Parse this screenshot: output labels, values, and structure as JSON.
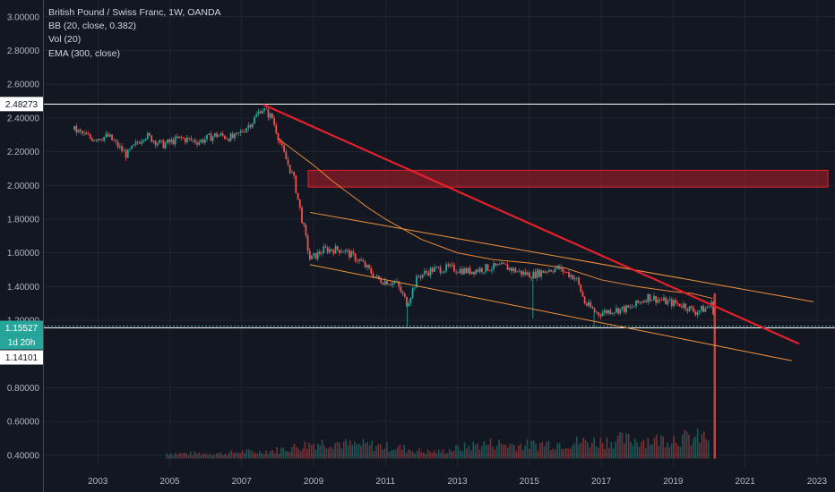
{
  "legend": {
    "title": "British Pound / Swiss Franc, 1W, OANDA",
    "indicators": [
      "BB (20, close, 0.382)",
      "Vol (20)",
      "EMA (300, close)"
    ]
  },
  "colors": {
    "background": "#131722",
    "grid": "#2a2e39",
    "axis_text": "#b2b5be",
    "price_up": "#26a69a",
    "price_down": "#ef5350",
    "red_trendline": "#e5202a",
    "orange_channel": "#f0923c",
    "ema": "#e8873a",
    "zone_fill": "rgba(210,30,40,0.45)",
    "zone_border": "#e5202a",
    "hline": "#ffffff",
    "current_badge": "#26a69a",
    "cursor_line": "#4dd0c8"
  },
  "chart_data": {
    "type": "candlestick",
    "title": "British Pound / Swiss Franc, 1W, OANDA",
    "x_ticks": [
      "2003",
      "2005",
      "2007",
      "2009",
      "2011",
      "2013",
      "2015",
      "2017",
      "2019",
      "2021",
      "2023"
    ],
    "y_ticks": [
      "3.00000",
      "2.80000",
      "2.60000",
      "2.40000",
      "2.20000",
      "2.00000",
      "1.80000",
      "1.60000",
      "1.40000",
      "1.20000",
      "0.80000",
      "0.60000",
      "0.40000"
    ],
    "y_range": [
      0.33,
      3.1
    ],
    "x_range": [
      2001.5,
      2023.5
    ],
    "price_badges": [
      {
        "label": "2.48273",
        "value": 2.48273,
        "style": "white"
      },
      {
        "label": "1.15527",
        "value": 1.15527,
        "style": "teal"
      },
      {
        "label": "1d 20h",
        "value": 1.1,
        "style": "teal"
      },
      {
        "label": "1.14101",
        "value": 1.14101,
        "style": "white"
      }
    ],
    "horizontal_lines": [
      2.48273,
      1.15527
    ],
    "close_series": {
      "x": [
        2002.35,
        2002.8,
        2003.3,
        2003.8,
        2004.3,
        2004.8,
        2005.3,
        2005.8,
        2006.3,
        2006.8,
        2007.3,
        2007.55,
        2007.85,
        2008.15,
        2008.45,
        2008.75,
        2008.9,
        2009.3,
        2009.8,
        2010.3,
        2010.8,
        2011.3,
        2011.6,
        2011.9,
        2012.3,
        2012.8,
        2013.3,
        2013.8,
        2014.3,
        2014.8,
        2015.1,
        2015.5,
        2015.8,
        2016.3,
        2016.55,
        2016.9,
        2017.3,
        2017.8,
        2018.3,
        2018.8,
        2019.3,
        2019.6,
        2019.9,
        2020.1,
        2020.15
      ],
      "y": [
        2.33,
        2.28,
        2.29,
        2.18,
        2.3,
        2.24,
        2.28,
        2.26,
        2.3,
        2.28,
        2.38,
        2.46,
        2.4,
        2.2,
        2.04,
        1.72,
        1.56,
        1.62,
        1.62,
        1.55,
        1.44,
        1.42,
        1.3,
        1.46,
        1.5,
        1.51,
        1.49,
        1.51,
        1.52,
        1.48,
        1.47,
        1.5,
        1.51,
        1.45,
        1.3,
        1.24,
        1.26,
        1.27,
        1.34,
        1.31,
        1.29,
        1.25,
        1.27,
        1.3,
        1.16
      ]
    },
    "ema_300": {
      "x": [
        2008.0,
        2008.5,
        2009.0,
        2009.5,
        2010.0,
        2010.5,
        2011.0,
        2011.5,
        2012.0,
        2013.0,
        2014.0,
        2015.0,
        2016.0,
        2017.0,
        2018.0,
        2019.0,
        2019.5,
        2020.1
      ],
      "y": [
        2.28,
        2.2,
        2.12,
        2.03,
        1.95,
        1.87,
        1.8,
        1.74,
        1.68,
        1.6,
        1.56,
        1.54,
        1.51,
        1.44,
        1.4,
        1.37,
        1.36,
        1.33
      ]
    },
    "annotations": {
      "red_trendline": {
        "x": [
          2007.6,
          2023.5
        ],
        "y": [
          2.48,
          1.06
        ]
      },
      "orange_channel_upper": {
        "x": [
          2008.9,
          2022.9
        ],
        "y": [
          1.84,
          1.31
        ]
      },
      "orange_channel_lower": {
        "x": [
          2008.9,
          2022.3
        ],
        "y": [
          1.53,
          0.96
        ]
      },
      "resistance_zone": {
        "x": [
          2008.85,
          2023.5
        ],
        "y": [
          1.99,
          2.09
        ]
      }
    },
    "volume": {
      "x": [
        2004.9,
        2005.5,
        2006.0,
        2006.5,
        2007.0,
        2007.5,
        2008.0,
        2008.5,
        2009.0,
        2009.5,
        2010.0,
        2010.5,
        2011.0,
        2011.5,
        2012.0,
        2012.5,
        2013.0,
        2013.5,
        2014.0,
        2014.5,
        2015.0,
        2015.5,
        2016.0,
        2016.5,
        2017.0,
        2017.5,
        2018.0,
        2018.5,
        2019.0,
        2019.5,
        2020.0,
        2020.15
      ],
      "y": [
        0.03,
        0.03,
        0.03,
        0.03,
        0.04,
        0.04,
        0.05,
        0.07,
        0.09,
        0.1,
        0.08,
        0.08,
        0.07,
        0.06,
        0.04,
        0.04,
        0.06,
        0.08,
        0.09,
        0.08,
        0.08,
        0.09,
        0.09,
        0.1,
        0.1,
        0.11,
        0.11,
        0.11,
        0.12,
        0.12,
        0.13,
        0.45
      ]
    }
  }
}
